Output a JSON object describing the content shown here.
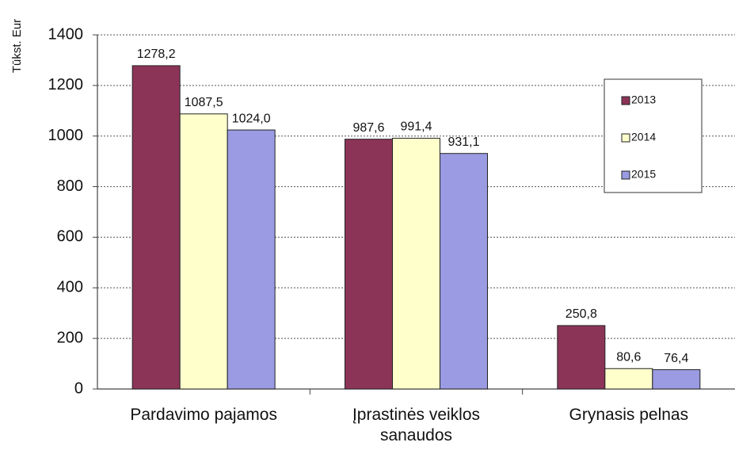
{
  "chart_data": {
    "type": "bar",
    "y_label": "Tūkst. Eur",
    "categories": [
      "Pardavimo pajamos",
      "Įprastinės veiklos sanaudos",
      "Grynasis pelnas"
    ],
    "series": [
      {
        "name": "2013",
        "color": "#8c3458",
        "values": [
          1278.2,
          987.6,
          250.8
        ],
        "value_labels": [
          "1278,2",
          "987,6",
          "250,8"
        ]
      },
      {
        "name": "2014",
        "color": "#ffffcc",
        "values": [
          1087.5,
          991.4,
          80.6
        ],
        "value_labels": [
          "1087,5",
          "991,4",
          "80,6"
        ]
      },
      {
        "name": "2015",
        "color": "#9a9be2",
        "values": [
          1024.0,
          931.1,
          76.4
        ],
        "value_labels": [
          "1024,0",
          "931,1",
          "76,4"
        ]
      }
    ],
    "ylim": [
      0,
      1400
    ],
    "yticks": [
      0,
      200,
      400,
      600,
      800,
      1000,
      1200,
      1400
    ],
    "grid": true,
    "legend": "upper right"
  }
}
